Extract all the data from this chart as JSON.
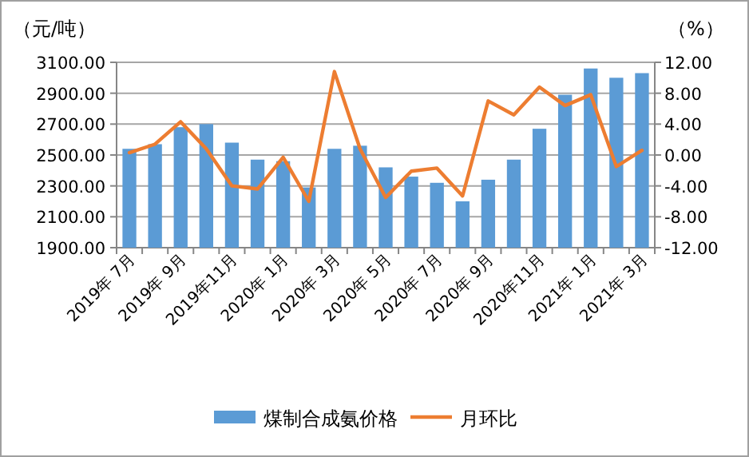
{
  "chart_data": {
    "type": "bar",
    "ylabel": "（元/吨）",
    "y2label": "（%）",
    "categories": [
      "2019年 7月",
      null,
      "2019年 9月",
      null,
      "2019年11月",
      null,
      "2020年 1月",
      null,
      "2020年 3月",
      null,
      "2020年 5月",
      null,
      "2020年 7月",
      null,
      "2020年 9月",
      null,
      "2020年11月",
      null,
      "2021年 1月",
      null,
      "2021年 3月"
    ],
    "series": [
      {
        "name": "煤制合成氨价格",
        "color": "#5b9bd5",
        "values": [
          2540,
          2570,
          2680,
          2700,
          2580,
          2470,
          2460,
          2290,
          2540,
          2560,
          2420,
          2360,
          2320,
          2200,
          2340,
          2470,
          2670,
          2890,
          3060,
          3000,
          3030
        ]
      },
      {
        "name": "月环比",
        "type": "line",
        "axis": "y2",
        "color": "#ed7d31",
        "values": [
          0.3,
          1.4,
          4.3,
          0.8,
          -4.0,
          -4.4,
          -0.3,
          -6.0,
          10.8,
          0.8,
          -5.5,
          -2.1,
          -1.7,
          -5.3,
          7.0,
          5.2,
          8.8,
          6.4,
          7.8,
          -1.5,
          0.6
        ]
      }
    ],
    "ylim": [
      1900,
      3100
    ],
    "yticks": [
      {
        "value": 1900,
        "label": "1900.00"
      },
      {
        "value": 2100,
        "label": "2100.00"
      },
      {
        "value": 2300,
        "label": "2300.00"
      },
      {
        "value": 2500,
        "label": "2500.00"
      },
      {
        "value": 2700,
        "label": "2700.00"
      },
      {
        "value": 2900,
        "label": "2900.00"
      },
      {
        "value": 3100,
        "label": "3100.00"
      }
    ],
    "y2lim": [
      -12,
      12
    ],
    "y2ticks": [
      {
        "value": -12,
        "label": "-12.00"
      },
      {
        "value": -8,
        "label": "-8.00"
      },
      {
        "value": -4,
        "label": "-4.00"
      },
      {
        "value": 0,
        "label": "0.00"
      },
      {
        "value": 4,
        "label": "4.00"
      },
      {
        "value": 8,
        "label": "8.00"
      },
      {
        "value": 12,
        "label": "12.00"
      }
    ],
    "grid": "y",
    "legend": "bottom"
  }
}
